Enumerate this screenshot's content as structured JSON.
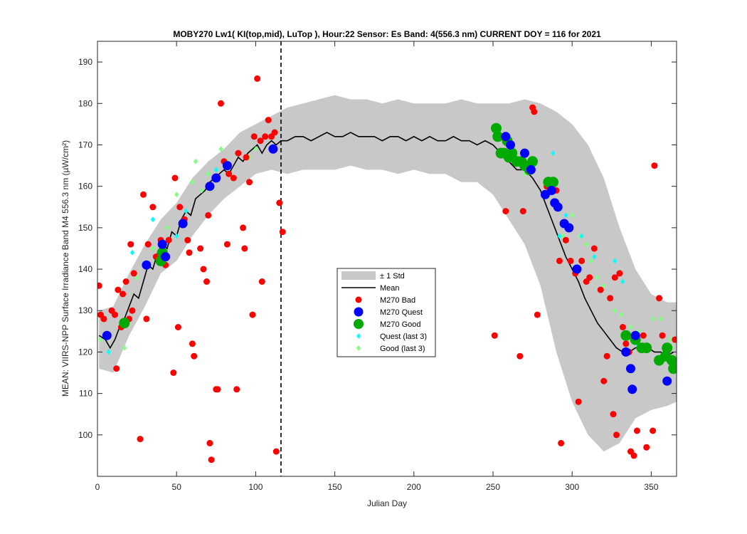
{
  "chart_data": {
    "type": "scatter",
    "title": "MOBY270   Lw1( KI(top,mid), LuTop ),    Hour:22 Sensor: Es Band: 4(556.3 nm)   CURRENT DOY = 116 for 2021",
    "xlabel": "Julian Day",
    "ylabel": "MEAN: VIIRS-NPP Surface Irradiance Band M4 556.3 nm (µW/cm²)",
    "xlim": [
      0,
      366
    ],
    "ylim": [
      90,
      195
    ],
    "xticks": [
      0,
      50,
      100,
      150,
      200,
      250,
      300,
      350
    ],
    "yticks": [
      100,
      110,
      120,
      130,
      140,
      150,
      160,
      170,
      180,
      190
    ],
    "current_doy": 116,
    "grid": false,
    "legend_position": "center",
    "legend": [
      {
        "key": "std",
        "label": "± 1 Std"
      },
      {
        "key": "mean",
        "label": "Mean"
      },
      {
        "key": "bad",
        "label": "M270 Bad"
      },
      {
        "key": "quest",
        "label": "M270 Quest"
      },
      {
        "key": "good",
        "label": "M270 Good"
      },
      {
        "key": "quest3",
        "label": "Quest (last 3)"
      },
      {
        "key": "good3",
        "label": "Good (last 3)"
      }
    ],
    "colors": {
      "std": "#c8c8c8",
      "mean": "#000000",
      "bad": "#ff0000",
      "quest": "#0000ff",
      "good": "#00aa00",
      "quest3": "#00ffff",
      "good3": "#80ff80"
    },
    "mean_curve": [
      [
        1,
        124
      ],
      [
        5,
        123
      ],
      [
        8,
        121
      ],
      [
        11,
        123
      ],
      [
        14,
        126
      ],
      [
        17,
        128
      ],
      [
        20,
        131
      ],
      [
        23,
        134
      ],
      [
        26,
        133
      ],
      [
        29,
        137
      ],
      [
        32,
        141
      ],
      [
        35,
        140
      ],
      [
        38,
        144
      ],
      [
        41,
        146
      ],
      [
        44,
        145
      ],
      [
        47,
        149
      ],
      [
        50,
        148
      ],
      [
        53,
        152
      ],
      [
        56,
        154
      ],
      [
        59,
        153
      ],
      [
        62,
        157
      ],
      [
        65,
        158
      ],
      [
        68,
        159
      ],
      [
        71,
        161
      ],
      [
        74,
        162
      ],
      [
        77,
        163
      ],
      [
        80,
        164
      ],
      [
        83,
        163
      ],
      [
        86,
        165
      ],
      [
        89,
        167
      ],
      [
        92,
        166
      ],
      [
        95,
        168
      ],
      [
        98,
        169
      ],
      [
        101,
        170
      ],
      [
        104,
        168
      ],
      [
        107,
        170
      ],
      [
        110,
        171
      ],
      [
        113,
        170
      ],
      [
        116,
        171
      ],
      [
        120,
        171
      ],
      [
        125,
        172
      ],
      [
        130,
        172
      ],
      [
        135,
        171
      ],
      [
        140,
        172
      ],
      [
        145,
        173
      ],
      [
        150,
        172
      ],
      [
        155,
        172
      ],
      [
        160,
        173
      ],
      [
        165,
        172
      ],
      [
        170,
        172
      ],
      [
        175,
        172
      ],
      [
        180,
        171
      ],
      [
        185,
        172
      ],
      [
        190,
        172
      ],
      [
        195,
        171
      ],
      [
        200,
        172
      ],
      [
        205,
        171
      ],
      [
        210,
        172
      ],
      [
        215,
        171
      ],
      [
        220,
        171
      ],
      [
        225,
        172
      ],
      [
        230,
        171
      ],
      [
        235,
        171
      ],
      [
        240,
        170
      ],
      [
        245,
        171
      ],
      [
        250,
        170
      ],
      [
        255,
        168
      ],
      [
        260,
        166
      ],
      [
        265,
        164
      ],
      [
        270,
        164
      ],
      [
        275,
        162
      ],
      [
        280,
        159
      ],
      [
        284,
        155
      ],
      [
        288,
        151
      ],
      [
        292,
        147
      ],
      [
        296,
        143
      ],
      [
        300,
        140
      ],
      [
        304,
        137
      ],
      [
        308,
        133
      ],
      [
        312,
        130
      ],
      [
        316,
        127
      ],
      [
        320,
        125
      ],
      [
        324,
        123
      ],
      [
        328,
        121
      ],
      [
        332,
        120
      ],
      [
        336,
        120
      ],
      [
        340,
        121
      ],
      [
        344,
        121
      ],
      [
        348,
        121
      ],
      [
        352,
        120
      ],
      [
        356,
        120
      ],
      [
        360,
        119
      ],
      [
        364,
        120
      ]
    ],
    "std_band": [
      [
        1,
        116,
        130
      ],
      [
        10,
        115,
        131
      ],
      [
        20,
        124,
        139
      ],
      [
        30,
        131,
        146
      ],
      [
        40,
        139,
        152
      ],
      [
        50,
        142,
        156
      ],
      [
        60,
        148,
        162
      ],
      [
        70,
        153,
        166
      ],
      [
        80,
        157,
        169
      ],
      [
        90,
        160,
        173
      ],
      [
        100,
        163,
        175
      ],
      [
        110,
        164,
        177
      ],
      [
        120,
        163,
        179
      ],
      [
        130,
        164,
        180
      ],
      [
        140,
        164,
        181
      ],
      [
        150,
        164,
        182
      ],
      [
        160,
        165,
        181
      ],
      [
        170,
        164,
        181
      ],
      [
        180,
        164,
        180
      ],
      [
        190,
        163,
        181
      ],
      [
        200,
        164,
        180
      ],
      [
        210,
        163,
        180
      ],
      [
        220,
        163,
        180
      ],
      [
        230,
        161,
        181
      ],
      [
        240,
        161,
        180
      ],
      [
        250,
        158,
        180
      ],
      [
        260,
        152,
        180
      ],
      [
        270,
        146,
        181
      ],
      [
        280,
        136,
        180
      ],
      [
        290,
        120,
        178
      ],
      [
        300,
        108,
        175
      ],
      [
        310,
        100,
        170
      ],
      [
        320,
        96,
        162
      ],
      [
        330,
        98,
        150
      ],
      [
        340,
        104,
        140
      ],
      [
        350,
        106,
        134
      ],
      [
        360,
        107,
        132
      ],
      [
        366,
        108,
        132
      ]
    ],
    "bad": [
      [
        1,
        136
      ],
      [
        2,
        129
      ],
      [
        4,
        128
      ],
      [
        9,
        130
      ],
      [
        11,
        129
      ],
      [
        12,
        116
      ],
      [
        13,
        135
      ],
      [
        15,
        126
      ],
      [
        16,
        134
      ],
      [
        18,
        137
      ],
      [
        20,
        128
      ],
      [
        21,
        146
      ],
      [
        22,
        130
      ],
      [
        23,
        139
      ],
      [
        27,
        99
      ],
      [
        29,
        158
      ],
      [
        31,
        128
      ],
      [
        32,
        146
      ],
      [
        35,
        155
      ],
      [
        37,
        143
      ],
      [
        40,
        147
      ],
      [
        43,
        141
      ],
      [
        45,
        147
      ],
      [
        48,
        115
      ],
      [
        49,
        162
      ],
      [
        51,
        126
      ],
      [
        52,
        155
      ],
      [
        55,
        152
      ],
      [
        57,
        147
      ],
      [
        58,
        144
      ],
      [
        60,
        122
      ],
      [
        61,
        119
      ],
      [
        65,
        145
      ],
      [
        67,
        140
      ],
      [
        69,
        137
      ],
      [
        70,
        153
      ],
      [
        71,
        98
      ],
      [
        72,
        94
      ],
      [
        75,
        111
      ],
      [
        76,
        111
      ],
      [
        78,
        180
      ],
      [
        80,
        166
      ],
      [
        82,
        146
      ],
      [
        83,
        163
      ],
      [
        86,
        162
      ],
      [
        88,
        111
      ],
      [
        89,
        168
      ],
      [
        92,
        150
      ],
      [
        93,
        145
      ],
      [
        94,
        167
      ],
      [
        96,
        161
      ],
      [
        98,
        129
      ],
      [
        99,
        172
      ],
      [
        101,
        186
      ],
      [
        103,
        171
      ],
      [
        104,
        137
      ],
      [
        106,
        172
      ],
      [
        108,
        176
      ],
      [
        110,
        172
      ],
      [
        112,
        173
      ],
      [
        113,
        96
      ],
      [
        115,
        156
      ],
      [
        117,
        149
      ],
      [
        251,
        124
      ],
      [
        258,
        154
      ],
      [
        267,
        119
      ],
      [
        269,
        154
      ],
      [
        275,
        179
      ],
      [
        276,
        178
      ],
      [
        278,
        129
      ],
      [
        284,
        160
      ],
      [
        287,
        159
      ],
      [
        290,
        159
      ],
      [
        292,
        142
      ],
      [
        293,
        98
      ],
      [
        296,
        147
      ],
      [
        299,
        142
      ],
      [
        302,
        139
      ],
      [
        304,
        108
      ],
      [
        306,
        142
      ],
      [
        309,
        137
      ],
      [
        311,
        138
      ],
      [
        314,
        145
      ],
      [
        318,
        135
      ],
      [
        320,
        113
      ],
      [
        322,
        119
      ],
      [
        324,
        133
      ],
      [
        326,
        105
      ],
      [
        327,
        138
      ],
      [
        328,
        100
      ],
      [
        330,
        139
      ],
      [
        332,
        126
      ],
      [
        334,
        122
      ],
      [
        336,
        120
      ],
      [
        337,
        96
      ],
      [
        339,
        95
      ],
      [
        341,
        101
      ],
      [
        343,
        121
      ],
      [
        345,
        124
      ],
      [
        347,
        97
      ],
      [
        351,
        101
      ],
      [
        352,
        165
      ],
      [
        355,
        133
      ],
      [
        357,
        124
      ],
      [
        360,
        120
      ],
      [
        363,
        118
      ],
      [
        365,
        123
      ]
    ],
    "quest": [
      [
        6,
        124
      ],
      [
        31,
        141
      ],
      [
        41,
        146
      ],
      [
        43,
        143
      ],
      [
        54,
        151
      ],
      [
        71,
        160
      ],
      [
        75,
        162
      ],
      [
        82,
        165
      ],
      [
        111,
        169
      ],
      [
        258,
        172
      ],
      [
        261,
        170
      ],
      [
        270,
        168
      ],
      [
        274,
        164
      ],
      [
        283,
        158
      ],
      [
        287,
        159
      ],
      [
        289,
        156
      ],
      [
        291,
        155
      ],
      [
        295,
        151
      ],
      [
        298,
        150
      ],
      [
        303,
        140
      ],
      [
        334,
        120
      ],
      [
        337,
        116
      ],
      [
        338,
        111
      ],
      [
        340,
        124
      ],
      [
        360,
        113
      ]
    ],
    "good": [
      [
        17,
        127
      ],
      [
        40,
        142
      ],
      [
        41,
        144
      ],
      [
        252,
        174
      ],
      [
        253,
        172
      ],
      [
        255,
        168
      ],
      [
        257,
        168
      ],
      [
        259,
        171
      ],
      [
        260,
        167
      ],
      [
        262,
        168
      ],
      [
        265,
        166
      ],
      [
        268,
        166
      ],
      [
        270,
        165
      ],
      [
        273,
        164
      ],
      [
        275,
        166
      ],
      [
        285,
        161
      ],
      [
        288,
        161
      ],
      [
        334,
        124
      ],
      [
        340,
        123
      ],
      [
        344,
        121
      ],
      [
        347,
        121
      ],
      [
        355,
        118
      ],
      [
        359,
        119
      ],
      [
        360,
        121
      ],
      [
        363,
        118
      ],
      [
        364,
        116
      ]
    ],
    "quest3": [
      [
        7,
        120
      ],
      [
        22,
        144
      ],
      [
        35,
        152
      ],
      [
        50,
        148
      ],
      [
        56,
        154
      ],
      [
        75,
        164
      ],
      [
        86,
        162
      ],
      [
        288,
        168
      ],
      [
        292,
        148
      ],
      [
        296,
        153
      ],
      [
        306,
        148
      ],
      [
        314,
        143
      ],
      [
        327,
        142
      ],
      [
        332,
        137
      ],
      [
        341,
        122
      ],
      [
        358,
        121
      ]
    ],
    "good3": [
      [
        2,
        123
      ],
      [
        17,
        121
      ],
      [
        25,
        138
      ],
      [
        35,
        145
      ],
      [
        44,
        150
      ],
      [
        50,
        158
      ],
      [
        60,
        161
      ],
      [
        62,
        166
      ],
      [
        66,
        159
      ],
      [
        70,
        163
      ],
      [
        78,
        169
      ],
      [
        82,
        166
      ],
      [
        90,
        168
      ],
      [
        96,
        167
      ],
      [
        100,
        169
      ],
      [
        270,
        163
      ],
      [
        283,
        160
      ],
      [
        294,
        148
      ],
      [
        300,
        153
      ],
      [
        305,
        148
      ],
      [
        309,
        146
      ],
      [
        312,
        142
      ],
      [
        316,
        138
      ],
      [
        320,
        136
      ],
      [
        324,
        133
      ],
      [
        327,
        130
      ],
      [
        331,
        129
      ],
      [
        337,
        126
      ],
      [
        342,
        125
      ],
      [
        346,
        124
      ],
      [
        351,
        128
      ],
      [
        356,
        128
      ],
      [
        362,
        123
      ]
    ]
  }
}
